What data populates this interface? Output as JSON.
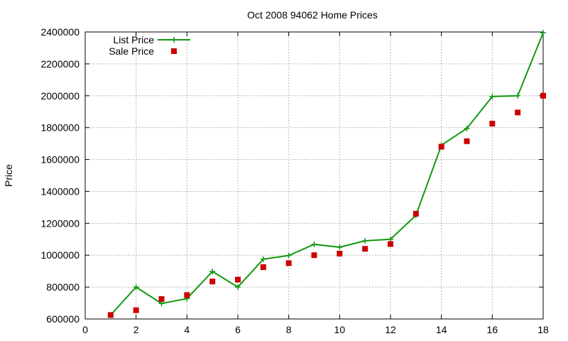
{
  "chart_data": {
    "type": "line",
    "title": "Oct 2008 94062 Home Prices",
    "xlabel": "",
    "ylabel": "Price",
    "xlim": [
      0,
      18
    ],
    "ylim": [
      600000,
      2400000
    ],
    "xticks": [
      0,
      2,
      4,
      6,
      8,
      10,
      12,
      14,
      16,
      18
    ],
    "yticks": [
      600000,
      800000,
      1000000,
      1200000,
      1400000,
      1600000,
      1800000,
      2000000,
      2200000,
      2400000
    ],
    "grid": true,
    "legend_position": "top-left",
    "series": [
      {
        "name": "List Price",
        "style": "lines+points",
        "marker": "plus",
        "color": "#119911",
        "x": [
          1,
          2,
          3,
          4,
          5,
          6,
          7,
          8,
          9,
          10,
          11,
          12,
          13,
          14,
          15,
          16,
          17,
          18
        ],
        "values": [
          625000,
          800000,
          697000,
          728000,
          898000,
          800000,
          975000,
          998000,
          1068000,
          1050000,
          1090000,
          1100000,
          1250000,
          1690000,
          1795000,
          1995000,
          2000000,
          2395000
        ]
      },
      {
        "name": "Sale Price",
        "style": "points",
        "marker": "square",
        "color": "#cc0000",
        "x": [
          1,
          2,
          3,
          4,
          5,
          6,
          7,
          8,
          9,
          10,
          11,
          12,
          13,
          14,
          15,
          16,
          17,
          18
        ],
        "values": [
          625000,
          655000,
          725000,
          750000,
          835000,
          847000,
          925000,
          950000,
          1000000,
          1010000,
          1040000,
          1070000,
          1260000,
          1680000,
          1715000,
          1825000,
          1895000,
          2000000
        ]
      }
    ]
  }
}
